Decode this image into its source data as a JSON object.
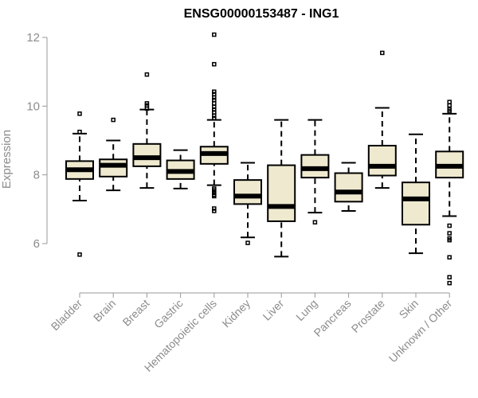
{
  "chart_data": {
    "type": "boxplot",
    "title": "ENSG00000153487 - ING1",
    "xlabel": "",
    "ylabel": "Expression",
    "ylim": [
      5,
      12.2
    ],
    "yticks": [
      6,
      8,
      10,
      12
    ],
    "grid": false,
    "colors": {
      "box_fill": "#efe9cf",
      "stroke": "#000000",
      "axis": "#999999",
      "text": "#8c8c8c"
    },
    "categories": [
      "Bladder",
      "Brain",
      "Breast",
      "Gastric",
      "Hematopoietic cells",
      "Kidney",
      "Liver",
      "Lung",
      "Pancreas",
      "Prostate",
      "Skin",
      "Unknown / Other"
    ],
    "boxes": [
      {
        "category": "Bladder",
        "whisker_low": 7.25,
        "q1": 7.88,
        "median": 8.15,
        "q3": 8.4,
        "whisker_high": 9.2,
        "outliers": [
          9.78,
          9.25,
          5.68
        ]
      },
      {
        "category": "Brain",
        "whisker_low": 7.55,
        "q1": 7.95,
        "median": 8.28,
        "q3": 8.45,
        "whisker_high": 9.0,
        "outliers": [
          9.6
        ]
      },
      {
        "category": "Breast",
        "whisker_low": 7.62,
        "q1": 8.25,
        "median": 8.5,
        "q3": 8.9,
        "whisker_high": 9.9,
        "outliers": [
          10.92,
          10.08,
          10.02,
          9.93
        ]
      },
      {
        "category": "Gastric",
        "whisker_low": 7.6,
        "q1": 7.88,
        "median": 8.1,
        "q3": 8.42,
        "whisker_high": 8.72,
        "outliers": []
      },
      {
        "category": "Hematopoietic cells",
        "whisker_low": 7.7,
        "q1": 8.32,
        "median": 8.62,
        "q3": 8.82,
        "whisker_high": 9.6,
        "outliers": [
          12.08,
          11.22,
          10.42,
          10.35,
          10.25,
          10.18,
          10.08,
          9.98,
          9.9,
          9.82,
          9.72,
          9.65,
          7.6,
          7.55,
          7.48,
          7.42,
          7.38,
          7.02,
          6.95
        ]
      },
      {
        "category": "Kidney",
        "whisker_low": 6.18,
        "q1": 7.15,
        "median": 7.38,
        "q3": 7.85,
        "whisker_high": 8.35,
        "outliers": [
          6.02
        ]
      },
      {
        "category": "Liver",
        "whisker_low": 5.62,
        "q1": 6.65,
        "median": 7.08,
        "q3": 8.28,
        "whisker_high": 9.6,
        "outliers": []
      },
      {
        "category": "Lung",
        "whisker_low": 6.9,
        "q1": 7.92,
        "median": 8.18,
        "q3": 8.58,
        "whisker_high": 9.6,
        "outliers": [
          6.62
        ]
      },
      {
        "category": "Pancreas",
        "whisker_low": 6.95,
        "q1": 7.22,
        "median": 7.5,
        "q3": 8.05,
        "whisker_high": 8.35,
        "outliers": []
      },
      {
        "category": "Prostate",
        "whisker_low": 7.62,
        "q1": 7.98,
        "median": 8.25,
        "q3": 8.85,
        "whisker_high": 9.95,
        "outliers": [
          11.55
        ]
      },
      {
        "category": "Skin",
        "whisker_low": 5.72,
        "q1": 6.55,
        "median": 7.3,
        "q3": 7.78,
        "whisker_high": 9.18,
        "outliers": []
      },
      {
        "category": "Unknown / Other",
        "whisker_low": 6.8,
        "q1": 7.92,
        "median": 8.25,
        "q3": 8.68,
        "whisker_high": 9.78,
        "outliers": [
          10.12,
          10.02,
          9.9,
          9.85,
          6.52,
          6.3,
          6.15,
          6.1,
          5.6,
          5.02,
          4.85
        ]
      }
    ]
  }
}
